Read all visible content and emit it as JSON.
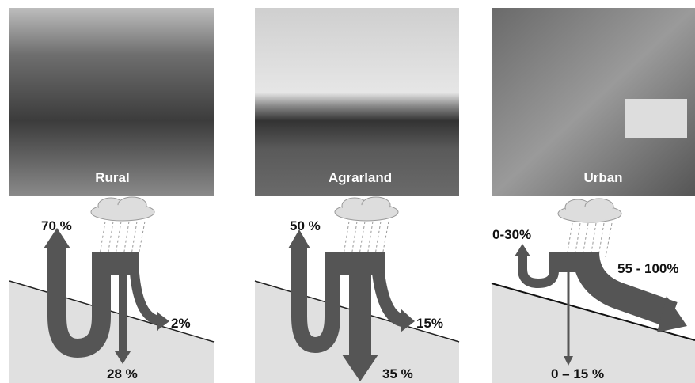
{
  "panels": [
    {
      "title": "Rural",
      "evaporation": "70 %",
      "runoff": "2%",
      "infiltration": "28 %"
    },
    {
      "title": "Agrarland",
      "evaporation": "50 %",
      "runoff": "15%",
      "infiltration": "35 %"
    },
    {
      "title": "Urban",
      "evaporation": "0-30%",
      "runoff": "55 - 100%",
      "infiltration": "0 – 15 %"
    }
  ]
}
